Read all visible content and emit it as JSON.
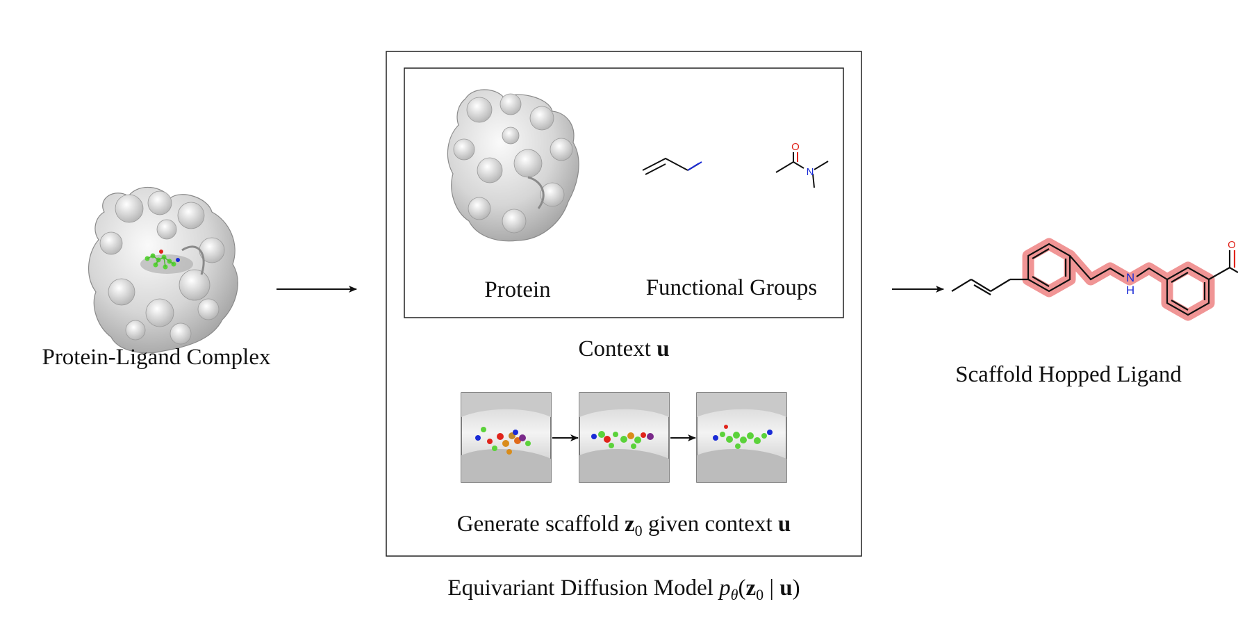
{
  "complex": {
    "label": "Protein-Ligand Complex"
  },
  "model": {
    "label_prefix": "Equivariant Diffusion Model ",
    "label_p": "p",
    "label_theta": "θ",
    "label_open": "(",
    "label_z": "z",
    "label_zero": "0",
    "label_bar": " | ",
    "label_u": "u",
    "label_close": ")"
  },
  "context": {
    "protein_label": "Protein",
    "groups_label": "Functional Groups",
    "title_prefix": "Context ",
    "title_u": "u"
  },
  "generation": {
    "caption_prefix": "Generate scaffold ",
    "caption_z": "z",
    "caption_zero": "0",
    "caption_mid": " given context ",
    "caption_u": "u"
  },
  "output": {
    "label": "Scaffold Hopped Ligand"
  },
  "atoms": {
    "oxygen": "O",
    "nitrogen": "N",
    "amine": "N",
    "amine_h": "H"
  },
  "colors": {
    "oxygen": "#e0241b",
    "nitrogen": "#1a2bd6",
    "scaffold_highlight": "#ef8a8a",
    "surface": "#d9d9d9",
    "ligand_green": "#5bd23a"
  },
  "icons": [
    "protein-surface-icon",
    "ligand-molecule-icon",
    "pocket-snapshot-icon",
    "arrow-icon"
  ]
}
